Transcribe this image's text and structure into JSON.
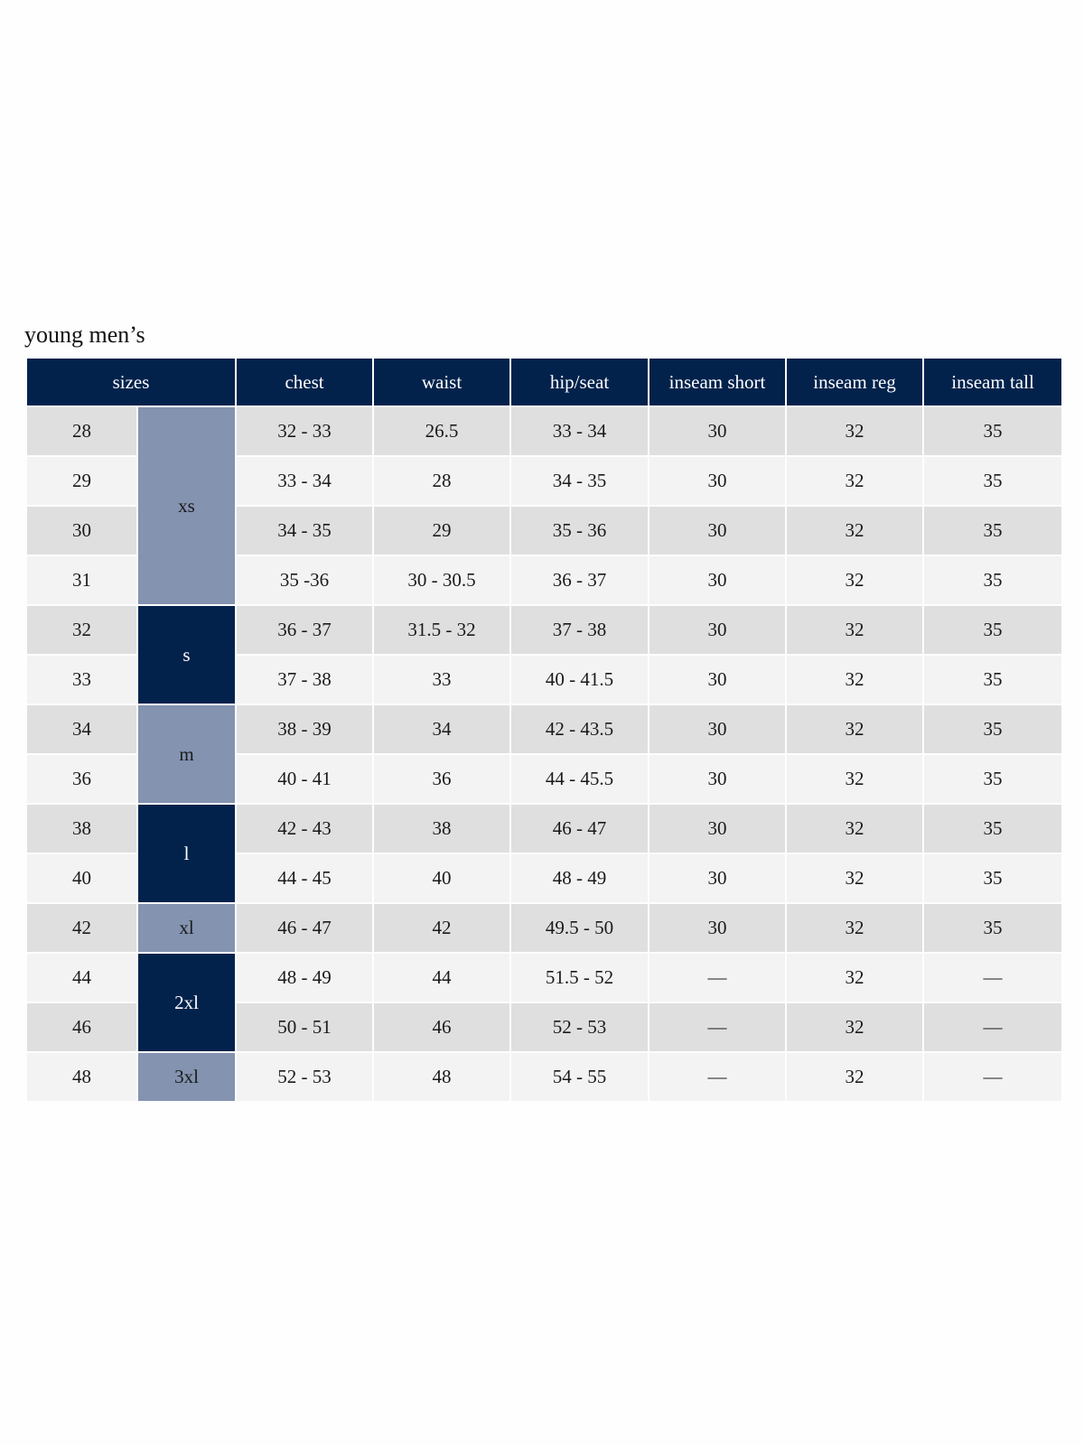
{
  "title": "young men’s",
  "colors": {
    "header": "#02224c",
    "size_light": "#8393b0",
    "size_dark": "#02224c",
    "row_odd": "#dfdfdf",
    "row_even": "#f3f3f3"
  },
  "headers": [
    "sizes",
    "chest",
    "waist",
    "hip/seat",
    "inseam short",
    "inseam reg",
    "inseam tall"
  ],
  "size_groups": [
    {
      "label": "xs",
      "rows": 4,
      "style": "light"
    },
    {
      "label": "s",
      "rows": 2,
      "style": "dark"
    },
    {
      "label": "m",
      "rows": 2,
      "style": "light"
    },
    {
      "label": "l",
      "rows": 2,
      "style": "dark"
    },
    {
      "label": "xl",
      "rows": 1,
      "style": "light"
    },
    {
      "label": "2xl",
      "rows": 2,
      "style": "dark"
    },
    {
      "label": "3xl",
      "rows": 1,
      "style": "light"
    }
  ],
  "rows": [
    [
      "28",
      "32 - 33",
      "26.5",
      "33 - 34",
      "30",
      "32",
      "35"
    ],
    [
      "29",
      "33 - 34",
      "28",
      "34 - 35",
      "30",
      "32",
      "35"
    ],
    [
      "30",
      "34 - 35",
      "29",
      "35 - 36",
      "30",
      "32",
      "35"
    ],
    [
      "31",
      "35 -36",
      "30 - 30.5",
      "36 - 37",
      "30",
      "32",
      "35"
    ],
    [
      "32",
      "36 - 37",
      "31.5 - 32",
      "37 - 38",
      "30",
      "32",
      "35"
    ],
    [
      "33",
      "37 - 38",
      "33",
      "40 - 41.5",
      "30",
      "32",
      "35"
    ],
    [
      "34",
      "38 - 39",
      "34",
      "42 - 43.5",
      "30",
      "32",
      "35"
    ],
    [
      "36",
      "40 - 41",
      "36",
      "44 - 45.5",
      "30",
      "32",
      "35"
    ],
    [
      "38",
      "42 - 43",
      "38",
      "46 - 47",
      "30",
      "32",
      "35"
    ],
    [
      "40",
      "44 - 45",
      "40",
      "48 - 49",
      "30",
      "32",
      "35"
    ],
    [
      "42",
      "46 - 47",
      "42",
      "49.5 - 50",
      "30",
      "32",
      "35"
    ],
    [
      "44",
      "48 - 49",
      "44",
      "51.5 - 52",
      "—",
      "32",
      "—"
    ],
    [
      "46",
      "50 - 51",
      "46",
      "52 - 53",
      "—",
      "32",
      "—"
    ],
    [
      "48",
      "52 - 53",
      "48",
      "54 - 55",
      "—",
      "32",
      "—"
    ]
  ]
}
